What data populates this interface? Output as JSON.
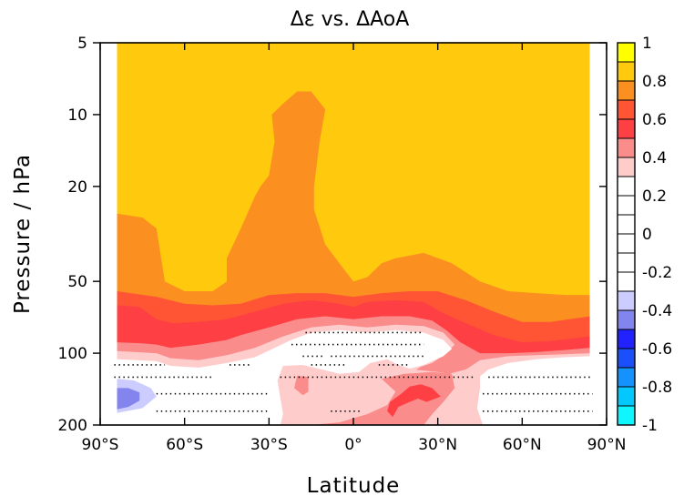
{
  "chart_data": {
    "type": "heatmap",
    "title": "Δε vs. ΔAoA",
    "xlabel": "Latitude",
    "ylabel": "Pressure  / hPa",
    "x_ticks": [
      "90°S",
      "60°S",
      "30°S",
      "0°",
      "30°N",
      "60°N",
      "90°N"
    ],
    "x_tick_values": [
      -90,
      -60,
      -30,
      0,
      30,
      60,
      90
    ],
    "y_ticks": [
      "5",
      "10",
      "20",
      "50",
      "100",
      "200"
    ],
    "y_tick_values": [
      5,
      10,
      20,
      50,
      100,
      200
    ],
    "y_scale": "log",
    "y_inverted": true,
    "xlim": [
      -90,
      90
    ],
    "ylim": [
      200,
      5
    ],
    "data_extent_x": [
      -84,
      84
    ],
    "colorbar": {
      "tick_labels": [
        "1",
        "0.8",
        "0.6",
        "0.4",
        "0.2",
        "0",
        "-0.2",
        "-0.4",
        "-0.6",
        "-0.8",
        "-1"
      ],
      "levels": [
        1,
        0.9,
        0.8,
        0.7,
        0.6,
        0.5,
        0.4,
        0.3,
        0.2,
        0.1,
        0,
        -0.1,
        -0.2,
        -0.3,
        -0.4,
        -0.5,
        -0.6,
        -0.7,
        -0.8,
        -0.9,
        -1
      ],
      "colors": [
        "#ffff00",
        "#ffc90e",
        "#fb9020",
        "#ff5535",
        "#fe3f43",
        "#fb8c8c",
        "#ffcccc",
        "#ffffff",
        "#ffffff",
        "#ffffff",
        "#ffffff",
        "#ffffff",
        "#ffffff",
        "#ccccff",
        "#8484ee",
        "#2222ff",
        "#1a4ffa",
        "#1493ff",
        "#03c7ff",
        "#0ff6ff"
      ]
    },
    "regions": [
      {
        "level": 0.8,
        "color": "#ffc90e",
        "polygon": [
          [
            -84,
            5
          ],
          [
            84,
            5
          ],
          [
            84,
            200
          ],
          [
            -84,
            200
          ]
        ]
      },
      {
        "level": 0.7,
        "color": "#fb9020",
        "polygon": [
          [
            -84,
            26
          ],
          [
            -75,
            27
          ],
          [
            -70,
            30
          ],
          [
            -67,
            50
          ],
          [
            -60,
            55
          ],
          [
            -50,
            55
          ],
          [
            -45,
            50
          ],
          [
            -45,
            40
          ],
          [
            -40,
            30
          ],
          [
            -35,
            22
          ],
          [
            -33,
            20
          ],
          [
            -30,
            18
          ],
          [
            -28,
            13
          ],
          [
            -29,
            10
          ],
          [
            -25,
            9
          ],
          [
            -20,
            8
          ],
          [
            -15,
            8
          ],
          [
            -10,
            9.5
          ],
          [
            -12,
            13
          ],
          [
            -14,
            20
          ],
          [
            -14,
            25
          ],
          [
            -10,
            35
          ],
          [
            -5,
            42
          ],
          [
            0,
            50
          ],
          [
            5,
            48
          ],
          [
            10,
            42
          ],
          [
            15,
            40
          ],
          [
            25,
            38
          ],
          [
            35,
            42
          ],
          [
            45,
            50
          ],
          [
            55,
            55
          ],
          [
            65,
            56
          ],
          [
            75,
            57
          ],
          [
            84,
            57
          ],
          [
            84,
            200
          ],
          [
            -84,
            200
          ]
        ]
      },
      {
        "level": 0.6,
        "color": "#ff5535",
        "polygon": [
          [
            -84,
            55
          ],
          [
            -70,
            58
          ],
          [
            -60,
            62
          ],
          [
            -50,
            63
          ],
          [
            -40,
            62
          ],
          [
            -30,
            57
          ],
          [
            -20,
            56
          ],
          [
            -10,
            56
          ],
          [
            0,
            58
          ],
          [
            10,
            56
          ],
          [
            20,
            55
          ],
          [
            30,
            55
          ],
          [
            40,
            60
          ],
          [
            50,
            67
          ],
          [
            60,
            74
          ],
          [
            70,
            74
          ],
          [
            84,
            70
          ],
          [
            84,
            200
          ],
          [
            -84,
            200
          ]
        ]
      },
      {
        "level": 0.5,
        "color": "#fe3f43",
        "polygon": [
          [
            -84,
            63
          ],
          [
            -76,
            64
          ],
          [
            -70,
            72
          ],
          [
            -64,
            75
          ],
          [
            -55,
            74
          ],
          [
            -45,
            72
          ],
          [
            -35,
            67
          ],
          [
            -25,
            62
          ],
          [
            -15,
            60
          ],
          [
            -5,
            62
          ],
          [
            0,
            64
          ],
          [
            5,
            61
          ],
          [
            15,
            60
          ],
          [
            25,
            61
          ],
          [
            32,
            68
          ],
          [
            40,
            75
          ],
          [
            50,
            84
          ],
          [
            60,
            90
          ],
          [
            70,
            89
          ],
          [
            84,
            85
          ],
          [
            84,
            200
          ],
          [
            -84,
            200
          ]
        ]
      },
      {
        "level": 0.4,
        "color": "#fb8c8c",
        "polygon": [
          [
            -84,
            90
          ],
          [
            -75,
            91
          ],
          [
            -70,
            92
          ],
          [
            -65,
            95
          ],
          [
            -55,
            92
          ],
          [
            -45,
            88
          ],
          [
            -40,
            84
          ],
          [
            -30,
            78
          ],
          [
            -20,
            72
          ],
          [
            -10,
            70
          ],
          [
            0,
            72
          ],
          [
            10,
            70
          ],
          [
            20,
            70
          ],
          [
            28,
            73
          ],
          [
            33,
            80
          ],
          [
            38,
            90
          ],
          [
            45,
            100
          ],
          [
            55,
            100
          ],
          [
            65,
            99
          ],
          [
            75,
            97
          ],
          [
            84,
            95
          ],
          [
            84,
            200
          ],
          [
            -84,
            200
          ]
        ]
      },
      {
        "level": 0.3,
        "color": "#ffcccc",
        "polygon": [
          [
            -84,
            98
          ],
          [
            -70,
            100
          ],
          [
            -65,
            105
          ],
          [
            -55,
            107
          ],
          [
            -45,
            102
          ],
          [
            -35,
            95
          ],
          [
            -25,
            85
          ],
          [
            -15,
            78
          ],
          [
            -5,
            76
          ],
          [
            5,
            78
          ],
          [
            15,
            76
          ],
          [
            25,
            77
          ],
          [
            32,
            82
          ],
          [
            36,
            92
          ],
          [
            33,
            100
          ],
          [
            28,
            110
          ],
          [
            24,
            114
          ],
          [
            22,
            118
          ],
          [
            28,
            120
          ],
          [
            34,
            122
          ],
          [
            40,
            117
          ],
          [
            45,
            107
          ],
          [
            55,
            103
          ],
          [
            65,
            102
          ],
          [
            75,
            101
          ],
          [
            84,
            100
          ],
          [
            84,
            200
          ],
          [
            -84,
            200
          ]
        ]
      },
      {
        "level": 0.2,
        "color": "#ffffff",
        "polygon": [
          [
            -84,
            106
          ],
          [
            -70,
            108
          ],
          [
            -65,
            113
          ],
          [
            -55,
            115
          ],
          [
            -45,
            110
          ],
          [
            -35,
            104
          ],
          [
            -28,
            95
          ],
          [
            -22,
            88
          ],
          [
            -15,
            82
          ],
          [
            -5,
            80
          ],
          [
            5,
            82
          ],
          [
            15,
            80
          ],
          [
            25,
            82
          ],
          [
            32,
            88
          ],
          [
            35,
            96
          ],
          [
            32,
            103
          ],
          [
            25,
            112
          ],
          [
            20,
            116
          ],
          [
            16,
            112
          ],
          [
            12,
            106
          ],
          [
            6,
            110
          ],
          [
            2,
            120
          ],
          [
            -5,
            122
          ],
          [
            -10,
            118
          ],
          [
            -18,
            112
          ],
          [
            -25,
            113
          ],
          [
            -27,
            130
          ],
          [
            -25,
            180
          ],
          [
            -26,
            200
          ],
          [
            -84,
            200
          ]
        ]
      },
      {
        "level": 0.2,
        "color": "#ffffff",
        "polygon": [
          [
            45,
            140
          ],
          [
            45,
            125
          ],
          [
            48,
            117
          ],
          [
            55,
            110
          ],
          [
            65,
            106
          ],
          [
            75,
            104
          ],
          [
            84,
            103
          ],
          [
            84,
            200
          ],
          [
            46,
            200
          ],
          [
            44,
            170
          ]
        ]
      },
      {
        "level": 0.3,
        "color": "#ffcccc",
        "polygon": [
          [
            -3,
            128
          ],
          [
            2,
            122
          ],
          [
            10,
            118
          ],
          [
            18,
            116
          ],
          [
            24,
            118
          ],
          [
            30,
            120
          ],
          [
            34,
            122
          ],
          [
            35,
            135
          ],
          [
            30,
            150
          ],
          [
            25,
            165
          ],
          [
            20,
            180
          ],
          [
            15,
            195
          ],
          [
            -3,
            200
          ],
          [
            -6,
            160
          ],
          [
            -8,
            140
          ]
        ]
      },
      {
        "level": 0.4,
        "color": "#fb8c8c",
        "polygon": [
          [
            -20,
            124
          ],
          [
            -16,
            126
          ],
          [
            -16,
            145
          ],
          [
            -18,
            150
          ],
          [
            -21,
            140
          ]
        ]
      },
      {
        "level": 0.4,
        "color": "#fb8c8c",
        "polygon": [
          [
            10,
            128
          ],
          [
            18,
            122
          ],
          [
            28,
            120
          ],
          [
            35,
            122
          ],
          [
            36,
            140
          ],
          [
            32,
            160
          ],
          [
            28,
            180
          ],
          [
            25,
            200
          ],
          [
            -15,
            200
          ],
          [
            -5,
            195
          ],
          [
            5,
            180
          ],
          [
            12,
            165
          ],
          [
            15,
            145
          ]
        ]
      },
      {
        "level": 0.5,
        "color": "#fe3f43",
        "polygon": [
          [
            20,
            138
          ],
          [
            24,
            135
          ],
          [
            28,
            140
          ],
          [
            31,
            152
          ],
          [
            26,
            160
          ],
          [
            23,
            155
          ],
          [
            20,
            160
          ],
          [
            16,
            168
          ],
          [
            14,
            185
          ],
          [
            12,
            175
          ],
          [
            13,
            160
          ],
          [
            17,
            148
          ]
        ]
      },
      {
        "level": -0.3,
        "color": "#ccccff",
        "polygon": [
          [
            -84,
            128
          ],
          [
            -78,
            130
          ],
          [
            -72,
            140
          ],
          [
            -70,
            152
          ],
          [
            -75,
            170
          ],
          [
            -84,
            178
          ]
        ]
      },
      {
        "level": -0.4,
        "color": "#8484ee",
        "polygon": [
          [
            -84,
            140
          ],
          [
            -80,
            140
          ],
          [
            -76,
            146
          ],
          [
            -76,
            158
          ],
          [
            -80,
            168
          ],
          [
            -84,
            172
          ]
        ]
      }
    ],
    "stipple_rows": [
      {
        "p": 82,
        "x": [
          [
            -17,
            25
          ]
        ]
      },
      {
        "p": 92,
        "x": [
          [
            -22,
            25
          ]
        ]
      },
      {
        "p": 103,
        "x": [
          [
            -18,
            -10
          ],
          [
            -8,
            26
          ]
        ]
      },
      {
        "p": 112,
        "x": [
          [
            -85,
            -67
          ],
          [
            -44,
            -37
          ],
          [
            -15,
            -3
          ],
          [
            9,
            20
          ]
        ]
      },
      {
        "p": 126,
        "x": [
          [
            -85,
            -50
          ],
          [
            -26,
            43
          ],
          [
            48,
            85
          ]
        ]
      },
      {
        "p": 148,
        "x": [
          [
            -70,
            -30
          ],
          [
            46,
            85
          ]
        ]
      },
      {
        "p": 175,
        "x": [
          [
            -70,
            -30
          ],
          [
            -8,
            3
          ],
          [
            46,
            85
          ]
        ]
      }
    ]
  }
}
